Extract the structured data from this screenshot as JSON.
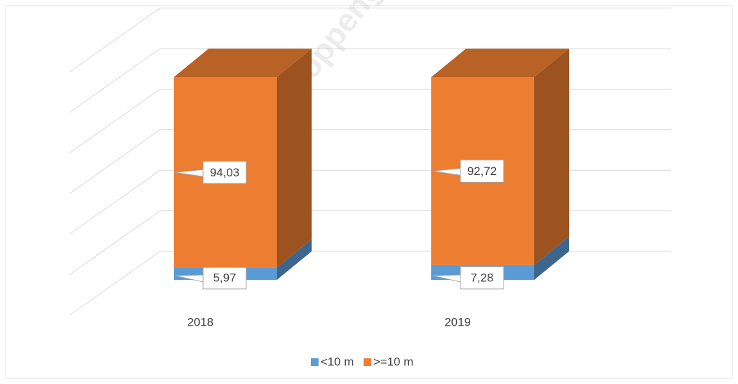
{
  "chart_data": {
    "type": "bar3d_stacked",
    "categories": [
      "2018",
      "2019"
    ],
    "series": [
      {
        "name": "<10 m",
        "color": "#5b9bd5",
        "values": [
          5.97,
          7.28
        ],
        "value_labels": [
          "5,97",
          "7,28"
        ]
      },
      {
        "name": ">=10 m",
        "color": "#ed7d31",
        "values": [
          94.03,
          92.72
        ],
        "value_labels": [
          "94,03",
          "92,72"
        ]
      }
    ],
    "ylim": [
      0,
      120
    ],
    "yticks": [
      0,
      20,
      40,
      60,
      80,
      100,
      120
    ],
    "grid": true,
    "legend": "bottom",
    "watermark": "https://soppengkab.bps.go.id"
  }
}
